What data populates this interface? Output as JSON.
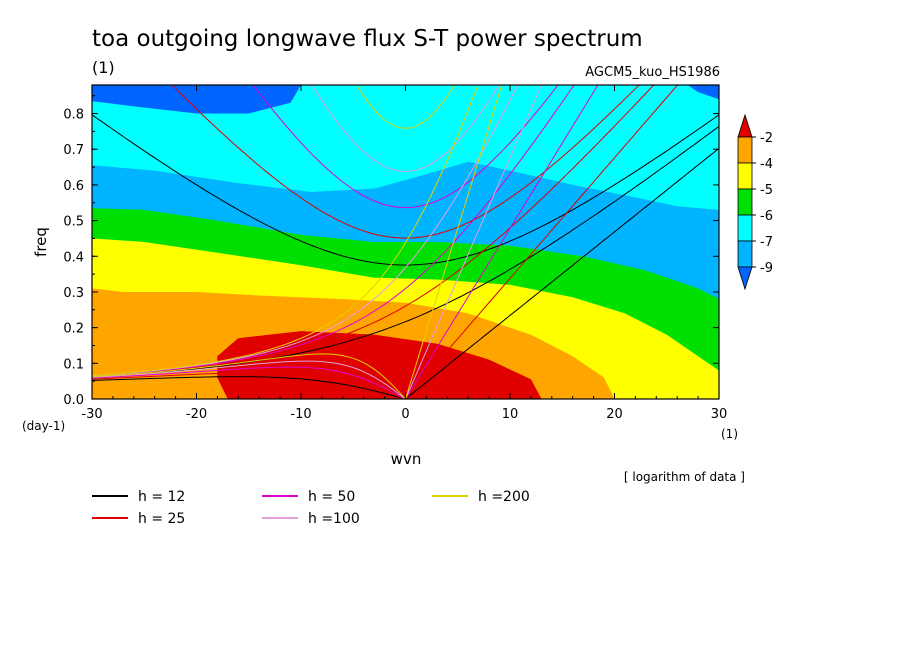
{
  "chart_data": {
    "type": "heatmap",
    "title": "toa outgoing longwave flux S-T power spectrum",
    "subtitle": "(1)",
    "source_label": "AGCM5_kuo_HS1986",
    "xlabel": "wvn",
    "ylabel": "freq",
    "x_unit": "(1)",
    "y_unit": "(day-1)",
    "xlim": [
      -30,
      30
    ],
    "ylim": [
      0,
      0.88
    ],
    "x_ticks": [
      -30,
      -20,
      -10,
      0,
      10,
      20,
      30
    ],
    "y_ticks": [
      0.0,
      0.1,
      0.2,
      0.3,
      0.4,
      0.5,
      0.6,
      0.7,
      0.8
    ],
    "x_tick_labels": [
      "-30",
      "-20",
      "-10",
      "0",
      "10",
      "20",
      "30"
    ],
    "y_tick_labels": [
      "0.0",
      "0.1",
      "0.2",
      "0.3",
      "0.4",
      "0.5",
      "0.6",
      "0.7",
      "0.8"
    ],
    "note": "[ logarithm of data ]",
    "colorbar": {
      "levels": [
        "-2",
        "-4",
        "-5",
        "-6",
        "-7",
        "-9"
      ],
      "colors": [
        "#e00000",
        "#ffa500",
        "#ffff00",
        "#00e000",
        "#00ffff",
        "#00b4ff",
        "#0064ff"
      ]
    },
    "contour_fill": {
      "description_levels": [
        -2,
        -4,
        -5,
        -6,
        -7,
        -9
      ],
      "boundaries": [
        {
          "level": "-9",
          "color": "#0064ff",
          "points": [
            [
              -30,
              0.88
            ],
            [
              -30,
              0.835
            ],
            [
              -26,
              0.82
            ],
            [
              -20,
              0.8
            ],
            [
              -15,
              0.8
            ],
            [
              -11,
              0.83
            ],
            [
              -10,
              0.88
            ]
          ]
        },
        {
          "level": "-9b",
          "color": "#0064ff",
          "points": [
            [
              27,
              0.88
            ],
            [
              28,
              0.86
            ],
            [
              30,
              0.84
            ],
            [
              30,
              0.88
            ]
          ]
        },
        {
          "level": "-7",
          "color": "#00ffff",
          "points": [
            [
              -30,
              0.88
            ],
            [
              -30,
              0.655
            ],
            [
              -24,
              0.64
            ],
            [
              -16,
              0.605
            ],
            [
              -9,
              0.58
            ],
            [
              -3,
              0.59
            ],
            [
              2,
              0.63
            ],
            [
              6,
              0.665
            ],
            [
              10,
              0.64
            ],
            [
              16,
              0.6
            ],
            [
              22,
              0.565
            ],
            [
              26,
              0.54
            ],
            [
              30,
              0.53
            ]
          ]
        },
        {
          "level": "-6",
          "color": "#00e000",
          "points": [
            [
              -30,
              0.535
            ],
            [
              -25,
              0.53
            ],
            [
              -18,
              0.5
            ],
            [
              -10,
              0.46
            ],
            [
              -3,
              0.44
            ],
            [
              3,
              0.44
            ],
            [
              10,
              0.43
            ],
            [
              17,
              0.4
            ],
            [
              23,
              0.36
            ],
            [
              28,
              0.31
            ],
            [
              30,
              0.28
            ]
          ]
        },
        {
          "level": "-5",
          "color": "#ffff00",
          "points": [
            [
              -30,
              0.45
            ],
            [
              -25,
              0.44
            ],
            [
              -18,
              0.41
            ],
            [
              -10,
              0.375
            ],
            [
              -3,
              0.34
            ],
            [
              3,
              0.335
            ],
            [
              10,
              0.32
            ],
            [
              16,
              0.285
            ],
            [
              21,
              0.24
            ],
            [
              25,
              0.18
            ],
            [
              28,
              0.12
            ],
            [
              30,
              0.08
            ]
          ]
        },
        {
          "level": "-4",
          "color": "#ffa500",
          "points": [
            [
              -30,
              0.31
            ],
            [
              -27,
              0.3
            ],
            [
              -20,
              0.3
            ],
            [
              -14,
              0.29
            ],
            [
              -6,
              0.28
            ],
            [
              0,
              0.27
            ],
            [
              6,
              0.24
            ],
            [
              12,
              0.18
            ],
            [
              16,
              0.12
            ],
            [
              19,
              0.06
            ],
            [
              20,
              0.0
            ]
          ]
        },
        {
          "level": "-2",
          "color": "#e00000",
          "points": [
            [
              -17,
              0.0
            ],
            [
              -18,
              0.06
            ],
            [
              -18,
              0.12
            ],
            [
              -16,
              0.17
            ],
            [
              -10,
              0.19
            ],
            [
              -3,
              0.18
            ],
            [
              3,
              0.155
            ],
            [
              8,
              0.11
            ],
            [
              12,
              0.055
            ],
            [
              13,
              0.0
            ]
          ]
        }
      ]
    },
    "dispersion_curves": [
      {
        "name": "h = 12",
        "color": "#000000"
      },
      {
        "name": "h = 25",
        "color": "#e00000"
      },
      {
        "name": "h = 50",
        "color": "#e000d0"
      },
      {
        "name": "h =100",
        "color": "#e0a0e0"
      },
      {
        "name": "h =200",
        "color": "#e0d000"
      }
    ],
    "legend_placement": "bottom"
  }
}
